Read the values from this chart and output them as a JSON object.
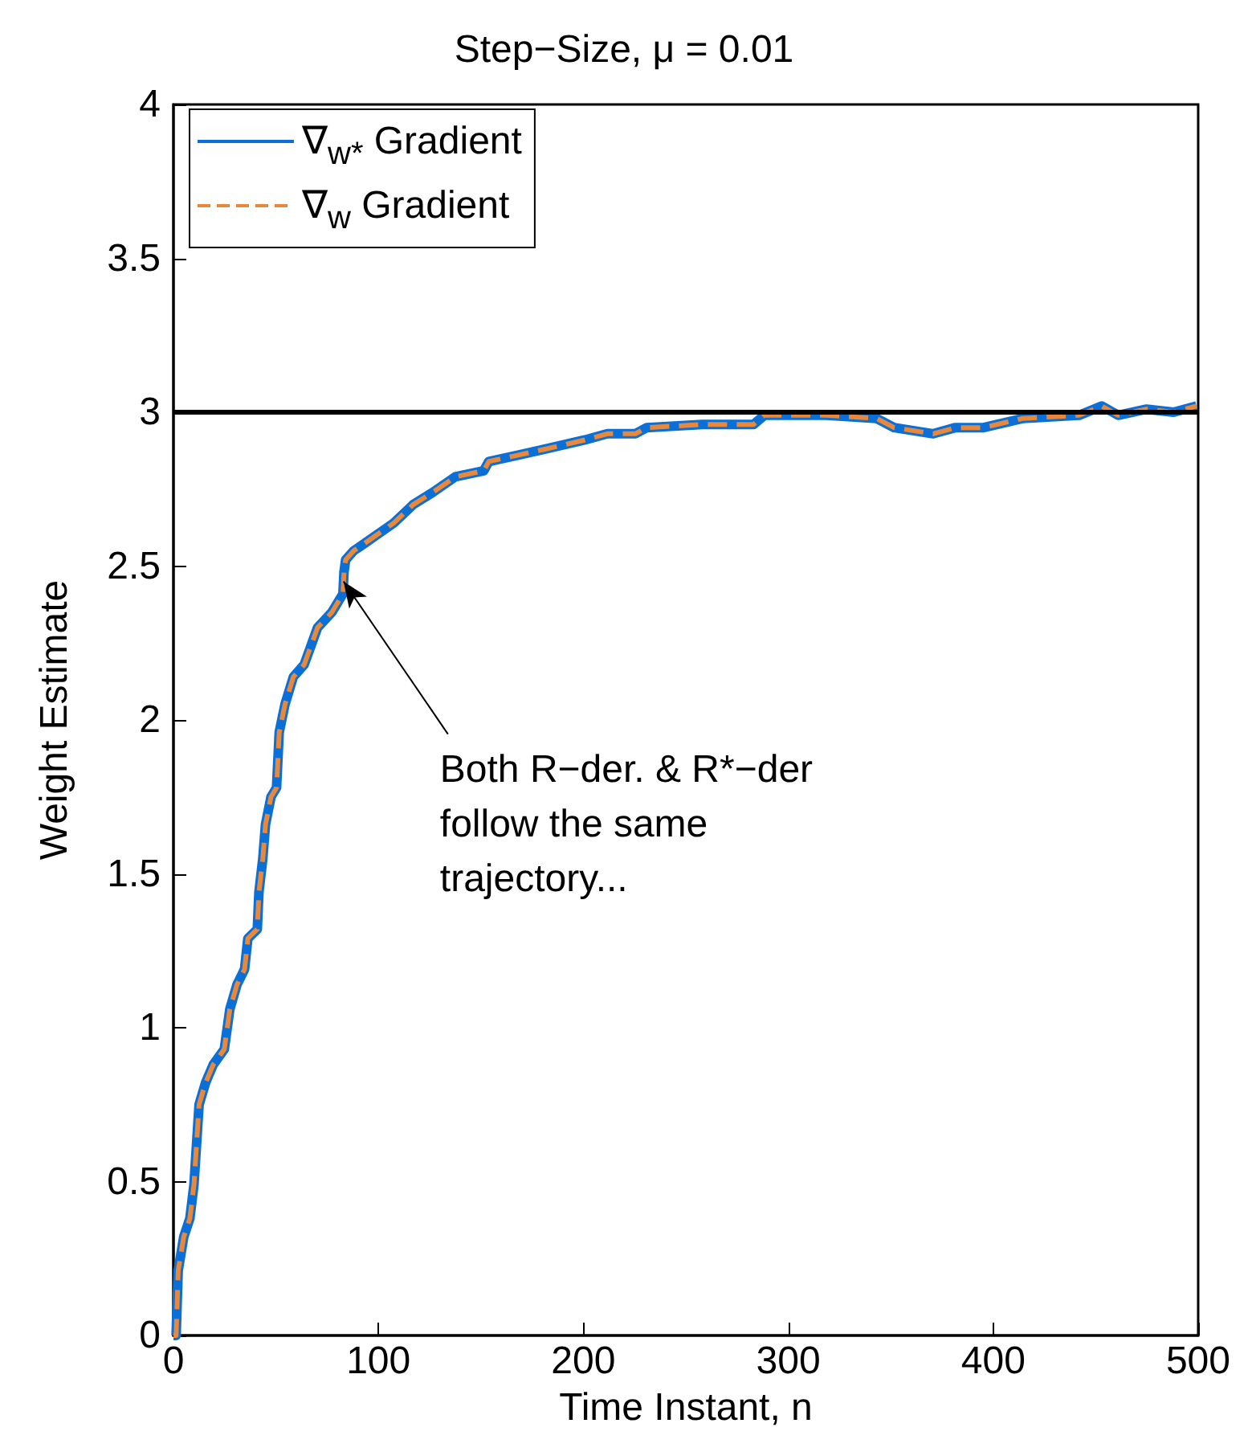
{
  "chart_data": {
    "type": "line",
    "title": "Step−Size, μ = 0.01",
    "xlabel": "Time Instant, n",
    "ylabel": "Weight Estimate",
    "x": [
      0,
      1.3,
      2.3,
      5,
      8,
      10,
      12.5,
      15.6,
      19.4,
      24.8,
      27.5,
      31,
      34.7,
      36.3,
      40.9,
      41.7,
      43.6,
      44.9,
      47.6,
      50.3,
      51.6,
      54.4,
      58.5,
      63.8,
      70.3,
      77.3,
      82.7,
      83.2,
      84,
      88,
      92.4,
      107.5,
      117,
      126.6,
      137.5,
      151.4,
      153.9,
      167.8,
      181.3,
      200.8,
      211.7,
      225.4,
      230.9,
      258,
      283,
      288.3,
      318.6,
      343,
      351.6,
      370.7,
      381.6,
      395.3,
      414.5,
      441.9,
      452.9,
      461,
      474.8,
      488,
      499.2
    ],
    "series": [
      {
        "name": "∇$_{w*}$ Gradient",
        "color": "#0a6fd6",
        "line_style": "solid",
        "values": [
          0,
          0,
          0.21,
          0.32,
          0.38,
          0.49,
          0.75,
          0.82,
          0.88,
          0.93,
          1.06,
          1.14,
          1.19,
          1.29,
          1.32,
          1.44,
          1.55,
          1.66,
          1.75,
          1.78,
          1.96,
          2.05,
          2.14,
          2.18,
          2.3,
          2.35,
          2.41,
          2.48,
          2.52,
          2.55,
          2.57,
          2.64,
          2.7,
          2.74,
          2.79,
          2.81,
          2.84,
          2.86,
          2.88,
          2.91,
          2.93,
          2.93,
          2.95,
          2.96,
          2.96,
          2.99,
          2.99,
          2.98,
          2.95,
          2.93,
          2.95,
          2.95,
          2.98,
          2.99,
          3.02,
          2.99,
          3.01,
          3.0,
          3.02
        ]
      },
      {
        "name": "∇$_{w}$ Gradient",
        "color": "#e8883a",
        "line_style": "dashed",
        "values": [
          0,
          0,
          0.21,
          0.32,
          0.38,
          0.49,
          0.75,
          0.82,
          0.88,
          0.93,
          1.06,
          1.14,
          1.19,
          1.29,
          1.32,
          1.44,
          1.55,
          1.66,
          1.75,
          1.78,
          1.96,
          2.05,
          2.14,
          2.18,
          2.3,
          2.35,
          2.41,
          2.48,
          2.52,
          2.55,
          2.57,
          2.64,
          2.7,
          2.74,
          2.79,
          2.81,
          2.84,
          2.86,
          2.88,
          2.91,
          2.93,
          2.93,
          2.95,
          2.96,
          2.96,
          2.99,
          2.99,
          2.98,
          2.95,
          2.93,
          2.95,
          2.95,
          2.98,
          2.99,
          3.02,
          2.99,
          3.01,
          3.0,
          3.02
        ]
      }
    ],
    "xlim": [
      0,
      500
    ],
    "xticks": [
      0,
      100,
      200,
      300,
      400,
      500
    ],
    "ylim": [
      0,
      4
    ],
    "yticks": [
      0,
      0.5,
      1,
      1.5,
      2,
      2.5,
      3,
      3.5,
      4
    ],
    "ref_lines": [
      {
        "axis": "y",
        "value": 3,
        "color": "#000000",
        "line_style": "solid"
      }
    ],
    "annotations": [
      {
        "text": "Both R−der. & R*−der\nfollow the same\ntrajectory...",
        "x": 83,
        "y": 2.45
      }
    ],
    "grid": false,
    "legend": "top left",
    "marker": "none"
  }
}
